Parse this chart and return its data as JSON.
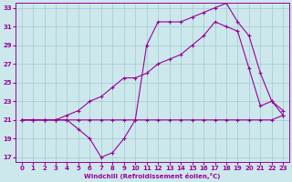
{
  "xlabel": "Windchill (Refroidissement éolien,°C)",
  "xlim": [
    -0.5,
    23.5
  ],
  "ylim": [
    16.5,
    33.5
  ],
  "yticks": [
    17,
    19,
    21,
    23,
    25,
    27,
    29,
    31,
    33
  ],
  "xticks": [
    0,
    1,
    2,
    3,
    4,
    5,
    6,
    7,
    8,
    9,
    10,
    11,
    12,
    13,
    14,
    15,
    16,
    17,
    18,
    19,
    20,
    21,
    22,
    23
  ],
  "bg_color": "#cce8ec",
  "grid_color": "#aacdd4",
  "line_color": "#990099",
  "line1_x": [
    0,
    1,
    2,
    3,
    4,
    5,
    6,
    7,
    8,
    9,
    10,
    11,
    12,
    13,
    14,
    15,
    16,
    17,
    18,
    19,
    20,
    21,
    22,
    23
  ],
  "line1_y": [
    21,
    21,
    21,
    21,
    21,
    20,
    19,
    17,
    17.5,
    19,
    21,
    21,
    21,
    21,
    21,
    21,
    21,
    21,
    21,
    21,
    21,
    21,
    21,
    21.5
  ],
  "line2_x": [
    0,
    1,
    2,
    3,
    4,
    5,
    6,
    7,
    8,
    9,
    10,
    11,
    12,
    13,
    14,
    15,
    16,
    17,
    18,
    19,
    20,
    21,
    22,
    23
  ],
  "line2_y": [
    21,
    21,
    21,
    21,
    21.5,
    22,
    23,
    23.5,
    24.5,
    25.5,
    25.5,
    26,
    27,
    27.5,
    28,
    29,
    30,
    31.5,
    31,
    30.5,
    26.5,
    22.5,
    23,
    21.5
  ],
  "line3_x": [
    0,
    1,
    2,
    3,
    4,
    5,
    6,
    7,
    8,
    9,
    10,
    11,
    12,
    13,
    14,
    15,
    16,
    17,
    18,
    19,
    20,
    21,
    22,
    23
  ],
  "line3_y": [
    21,
    21,
    21,
    21,
    21,
    21,
    21,
    21,
    21,
    21,
    21,
    29,
    31.5,
    31.5,
    31.5,
    32,
    32.5,
    33,
    33.5,
    31.5,
    30,
    26,
    23,
    22
  ]
}
